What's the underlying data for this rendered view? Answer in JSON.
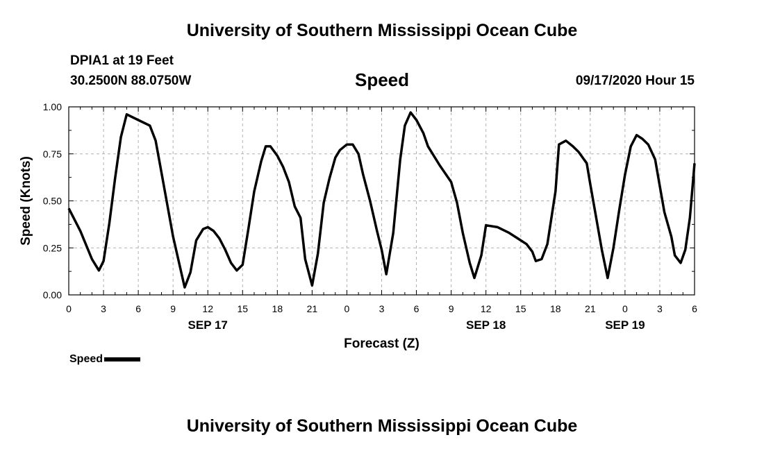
{
  "header": {
    "title": "University of Southern Mississippi Ocean Cube",
    "station": "DPIA1 at 19 Feet",
    "coords": "30.2500N 88.0750W",
    "datetime": "09/17/2020 Hour 15"
  },
  "footer": {
    "title": "University of Southern Mississippi Ocean Cube"
  },
  "legend": {
    "label": "Speed"
  },
  "chart_data": {
    "type": "line",
    "title": "Speed",
    "xlabel": "Forecast (Z)",
    "ylabel": "Speed (Knots)",
    "xlim": [
      0,
      54
    ],
    "ylim": [
      0,
      1
    ],
    "x_unit": "hours since 09/17 00Z",
    "x_tick_labels": [
      "0",
      "3",
      "6",
      "9",
      "12",
      "15",
      "18",
      "21",
      "0",
      "3",
      "6",
      "9",
      "12",
      "15",
      "18",
      "21",
      "0",
      "3",
      "6"
    ],
    "y_tick_labels": [
      "0.00",
      "0.25",
      "0.50",
      "0.75",
      "1.00"
    ],
    "date_labels": [
      {
        "text": "SEP 17",
        "at": "12"
      },
      {
        "text": "SEP 18",
        "at": "12"
      },
      {
        "text": "SEP 19",
        "at": "0"
      }
    ],
    "grid": true,
    "legend_position": "bottom-left",
    "series": [
      {
        "name": "Speed",
        "color": "#000000",
        "x": [
          0,
          1,
          2,
          2.6,
          3,
          3.5,
          4,
          4.5,
          5,
          6,
          7,
          7.5,
          8,
          9,
          10,
          10.5,
          11,
          11.6,
          12,
          12.5,
          13,
          13.5,
          14,
          14.5,
          15,
          15.5,
          16,
          16.6,
          17,
          17.4,
          18,
          18.5,
          19,
          19.5,
          20,
          20.4,
          21,
          21.5,
          22,
          22.5,
          23,
          23.4,
          24,
          24.5,
          25,
          25.4,
          26,
          26.6,
          27,
          27.4,
          28,
          28.6,
          29,
          29.5,
          30,
          30.6,
          31,
          32,
          33,
          33.5,
          34,
          34.6,
          35,
          35.6,
          36,
          37,
          38,
          38.5,
          39,
          39.5,
          40,
          40.3,
          40.8,
          41.3,
          42,
          42.3,
          42.9,
          43.5,
          44,
          44.7,
          45,
          45.4,
          46,
          46.5,
          47,
          47.5,
          48,
          48.5,
          49,
          49.5,
          50,
          50.6,
          51,
          51.4,
          52,
          52.3,
          52.8,
          53.2,
          53.6,
          54
        ],
        "y": [
          0.46,
          0.34,
          0.19,
          0.13,
          0.18,
          0.38,
          0.62,
          0.84,
          0.96,
          0.93,
          0.9,
          0.82,
          0.65,
          0.31,
          0.04,
          0.12,
          0.29,
          0.35,
          0.36,
          0.34,
          0.3,
          0.24,
          0.17,
          0.13,
          0.16,
          0.35,
          0.55,
          0.71,
          0.79,
          0.79,
          0.74,
          0.68,
          0.6,
          0.47,
          0.41,
          0.19,
          0.05,
          0.22,
          0.49,
          0.62,
          0.73,
          0.77,
          0.8,
          0.8,
          0.75,
          0.64,
          0.5,
          0.34,
          0.24,
          0.11,
          0.33,
          0.72,
          0.9,
          0.97,
          0.93,
          0.86,
          0.79,
          0.69,
          0.6,
          0.49,
          0.33,
          0.17,
          0.09,
          0.21,
          0.37,
          0.36,
          0.33,
          0.31,
          0.29,
          0.27,
          0.23,
          0.18,
          0.19,
          0.27,
          0.55,
          0.8,
          0.82,
          0.79,
          0.76,
          0.7,
          0.59,
          0.45,
          0.24,
          0.09,
          0.25,
          0.45,
          0.64,
          0.79,
          0.85,
          0.83,
          0.8,
          0.72,
          0.58,
          0.44,
          0.31,
          0.21,
          0.17,
          0.24,
          0.41,
          0.7
        ]
      }
    ]
  }
}
